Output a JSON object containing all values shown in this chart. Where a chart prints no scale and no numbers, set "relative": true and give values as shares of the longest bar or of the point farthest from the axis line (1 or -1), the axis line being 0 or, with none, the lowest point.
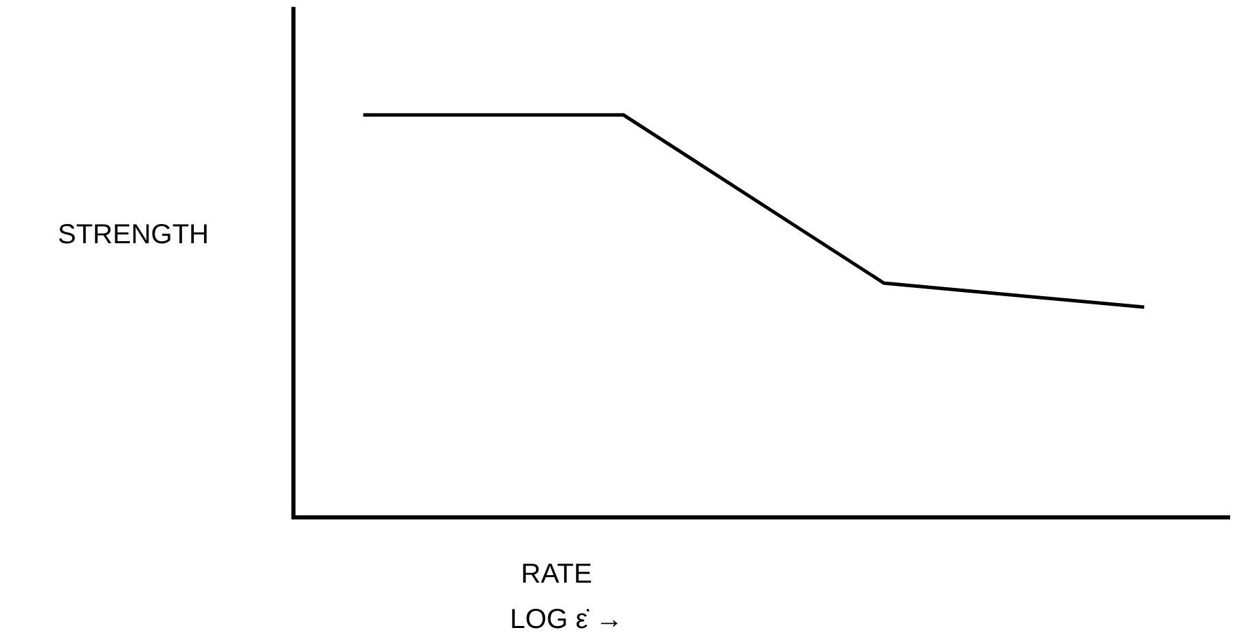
{
  "chart_data": {
    "type": "line",
    "relative": true,
    "categories": [
      null,
      null,
      null,
      null
    ],
    "series": [
      {
        "color": "#000000",
        "values": [
          1,
          1,
          0.58,
          0.52
        ]
      }
    ],
    "ylabel": "STRENGTH",
    "xlabel": "RATE",
    "annotations": [
      "LOG ε̇ →"
    ],
    "legend": false,
    "marker": "none",
    "line_style": "solid"
  }
}
